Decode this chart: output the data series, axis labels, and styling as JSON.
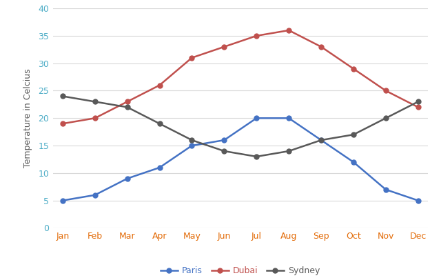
{
  "months": [
    "Jan",
    "Feb",
    "Mar",
    "Apr",
    "May",
    "Jun",
    "Jul",
    "Aug",
    "Sep",
    "Oct",
    "Nov",
    "Dec"
  ],
  "paris": [
    5,
    6,
    9,
    11,
    15,
    16,
    20,
    20,
    16,
    12,
    7,
    5
  ],
  "dubai": [
    19,
    20,
    23,
    26,
    31,
    33,
    35,
    36,
    33,
    29,
    25,
    22
  ],
  "sydney": [
    24,
    23,
    22,
    19,
    16,
    14,
    13,
    14,
    16,
    17,
    20,
    23
  ],
  "paris_color": "#4472C4",
  "dubai_color": "#C0504D",
  "sydney_color": "#595959",
  "xlabel_color": "#E36C09",
  "ylabel_color": "#595959",
  "ytick_color": "#4BACC6",
  "ylabel": "Temperature in Celcius",
  "ylim": [
    0,
    40
  ],
  "yticks": [
    0,
    5,
    10,
    15,
    20,
    25,
    30,
    35,
    40
  ],
  "grid_color": "#D9D9D9",
  "background_color": "#FFFFFF",
  "legend_labels": [
    "Paris",
    "Dubai",
    "Sydney"
  ],
  "marker": "o",
  "linewidth": 1.8,
  "markersize": 5
}
